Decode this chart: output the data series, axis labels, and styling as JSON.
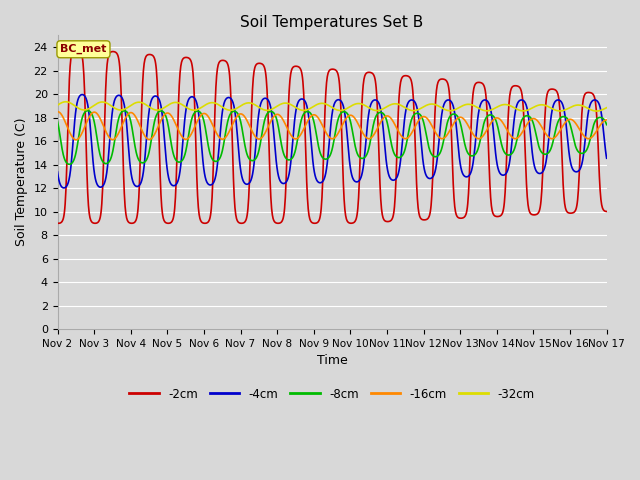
{
  "title": "Soil Temperatures Set B",
  "xlabel": "Time",
  "ylabel": "Soil Temperature (C)",
  "xlim": [
    0,
    15
  ],
  "ylim": [
    0,
    25
  ],
  "yticks": [
    0,
    2,
    4,
    6,
    8,
    10,
    12,
    14,
    16,
    18,
    20,
    22,
    24
  ],
  "xtick_labels": [
    "Nov 2",
    "Nov 3",
    "Nov 4",
    "Nov 5",
    "Nov 6",
    "Nov 7",
    "Nov 8",
    "Nov 9",
    "Nov 10",
    "Nov 11",
    "Nov 12",
    "Nov 13",
    "Nov 14",
    "Nov 15",
    "Nov 16",
    "Nov 17"
  ],
  "label_box": "BC_met",
  "series_2cm": {
    "color": "#cc0000",
    "linewidth": 1.2
  },
  "series_4cm": {
    "color": "#0000cc",
    "linewidth": 1.2
  },
  "series_8cm": {
    "color": "#00bb00",
    "linewidth": 1.2
  },
  "series_16cm": {
    "color": "#ff8800",
    "linewidth": 1.2
  },
  "series_32cm": {
    "color": "#dddd00",
    "linewidth": 1.2
  },
  "bg_color": "#d8d8d8",
  "grid_color": "#ffffff",
  "figwidth": 6.4,
  "figheight": 4.8,
  "dpi": 100
}
